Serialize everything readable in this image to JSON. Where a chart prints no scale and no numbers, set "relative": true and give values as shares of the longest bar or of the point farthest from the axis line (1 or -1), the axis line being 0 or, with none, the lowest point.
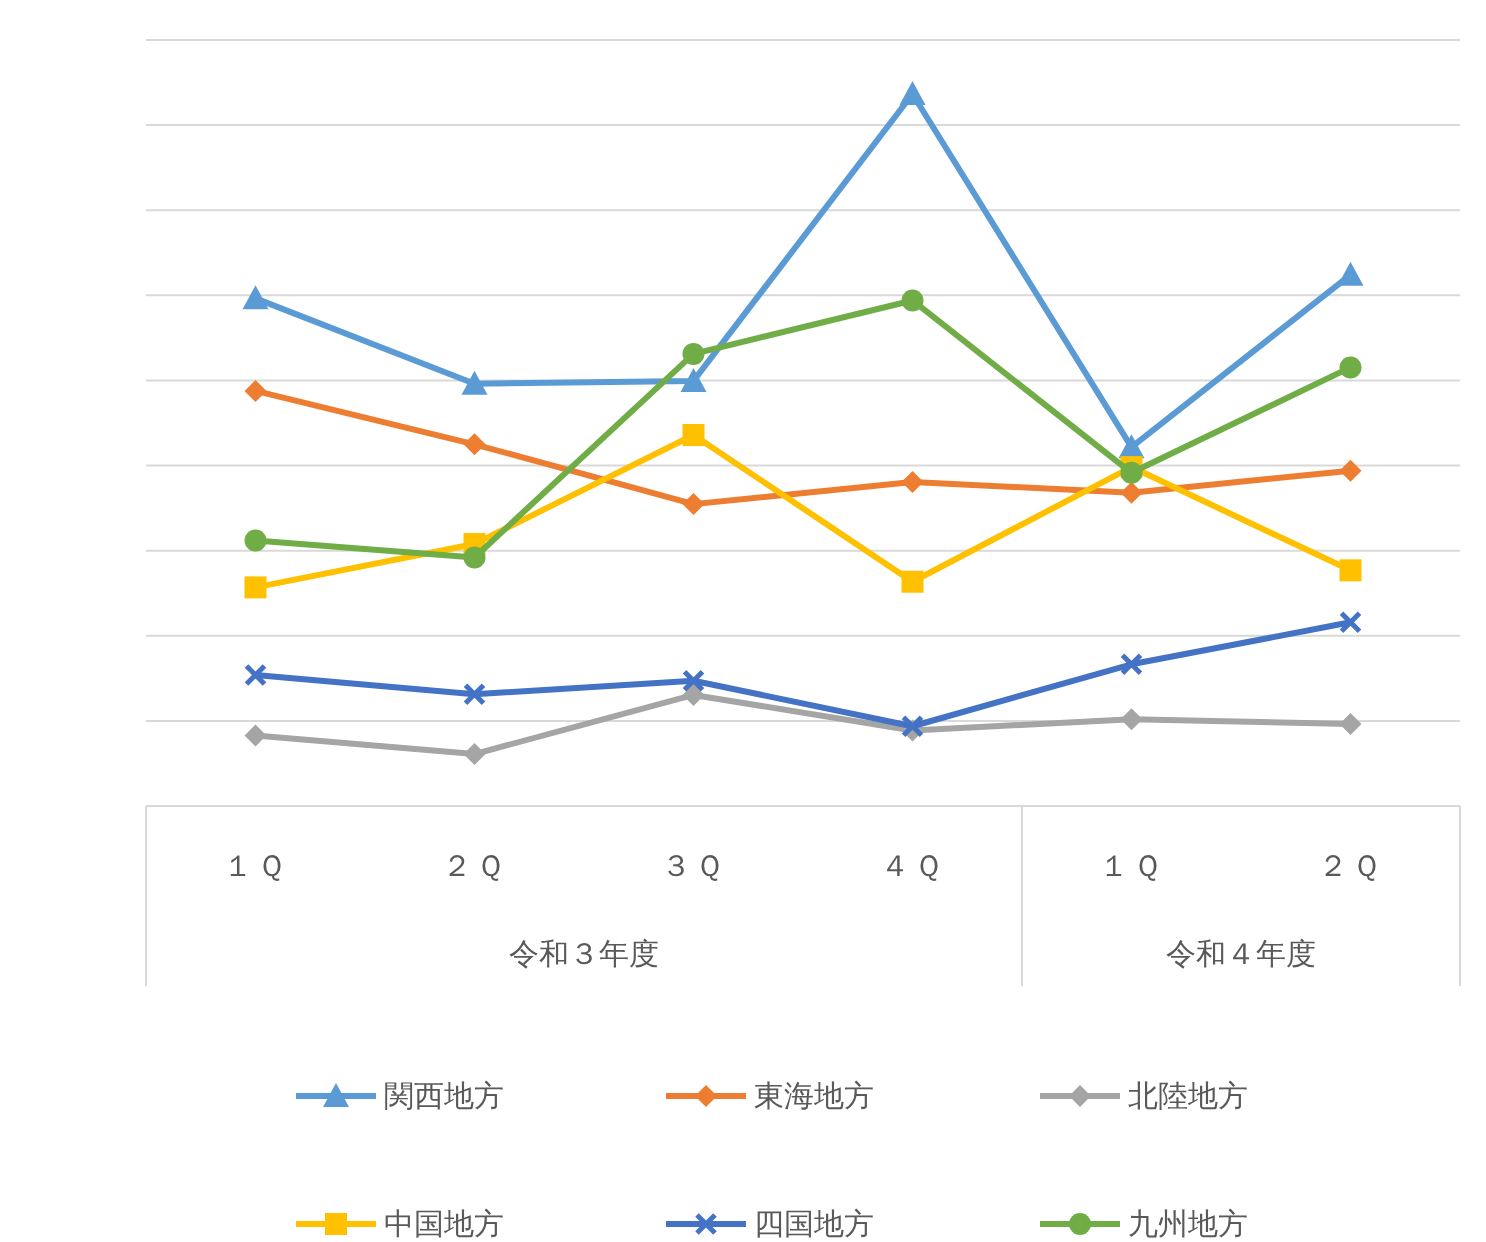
{
  "chart_data": {
    "type": "line",
    "relative": true,
    "grid": true,
    "legend": "bottom",
    "categories": [
      "１Ｑ",
      "２Ｑ",
      "３Ｑ",
      "４Ｑ",
      "１Ｑ",
      "２Ｑ"
    ],
    "annotations": [
      "令和３年度",
      "令和４年度"
    ],
    "series": [
      {
        "name": "関西地方",
        "color": "#5b9bd5",
        "marker": "triangle",
        "values": [
          0.713,
          0.593,
          0.597,
          1,
          0.504,
          0.746
        ]
      },
      {
        "name": "東海地方",
        "color": "#ed7d31",
        "marker": "diamond",
        "values": [
          0.583,
          0.508,
          0.424,
          0.455,
          0.44,
          0.471
        ]
      },
      {
        "name": "北陸地方",
        "color": "#a5a5a5",
        "marker": "diamond",
        "values": [
          0.099,
          0.073,
          0.156,
          0.106,
          0.122,
          0.115
        ]
      },
      {
        "name": "中国地方",
        "color": "#ffc000",
        "marker": "square",
        "values": [
          0.307,
          0.368,
          0.521,
          0.315,
          0.476,
          0.331
        ]
      },
      {
        "name": "四国地方",
        "color": "#4472c4",
        "marker": "cross",
        "values": [
          0.184,
          0.157,
          0.176,
          0.112,
          0.199,
          0.258
        ]
      },
      {
        "name": "九州地方",
        "color": "#70ad47",
        "marker": "circle",
        "values": [
          0.373,
          0.349,
          0.635,
          0.71,
          0.468,
          0.616
        ]
      }
    ]
  }
}
